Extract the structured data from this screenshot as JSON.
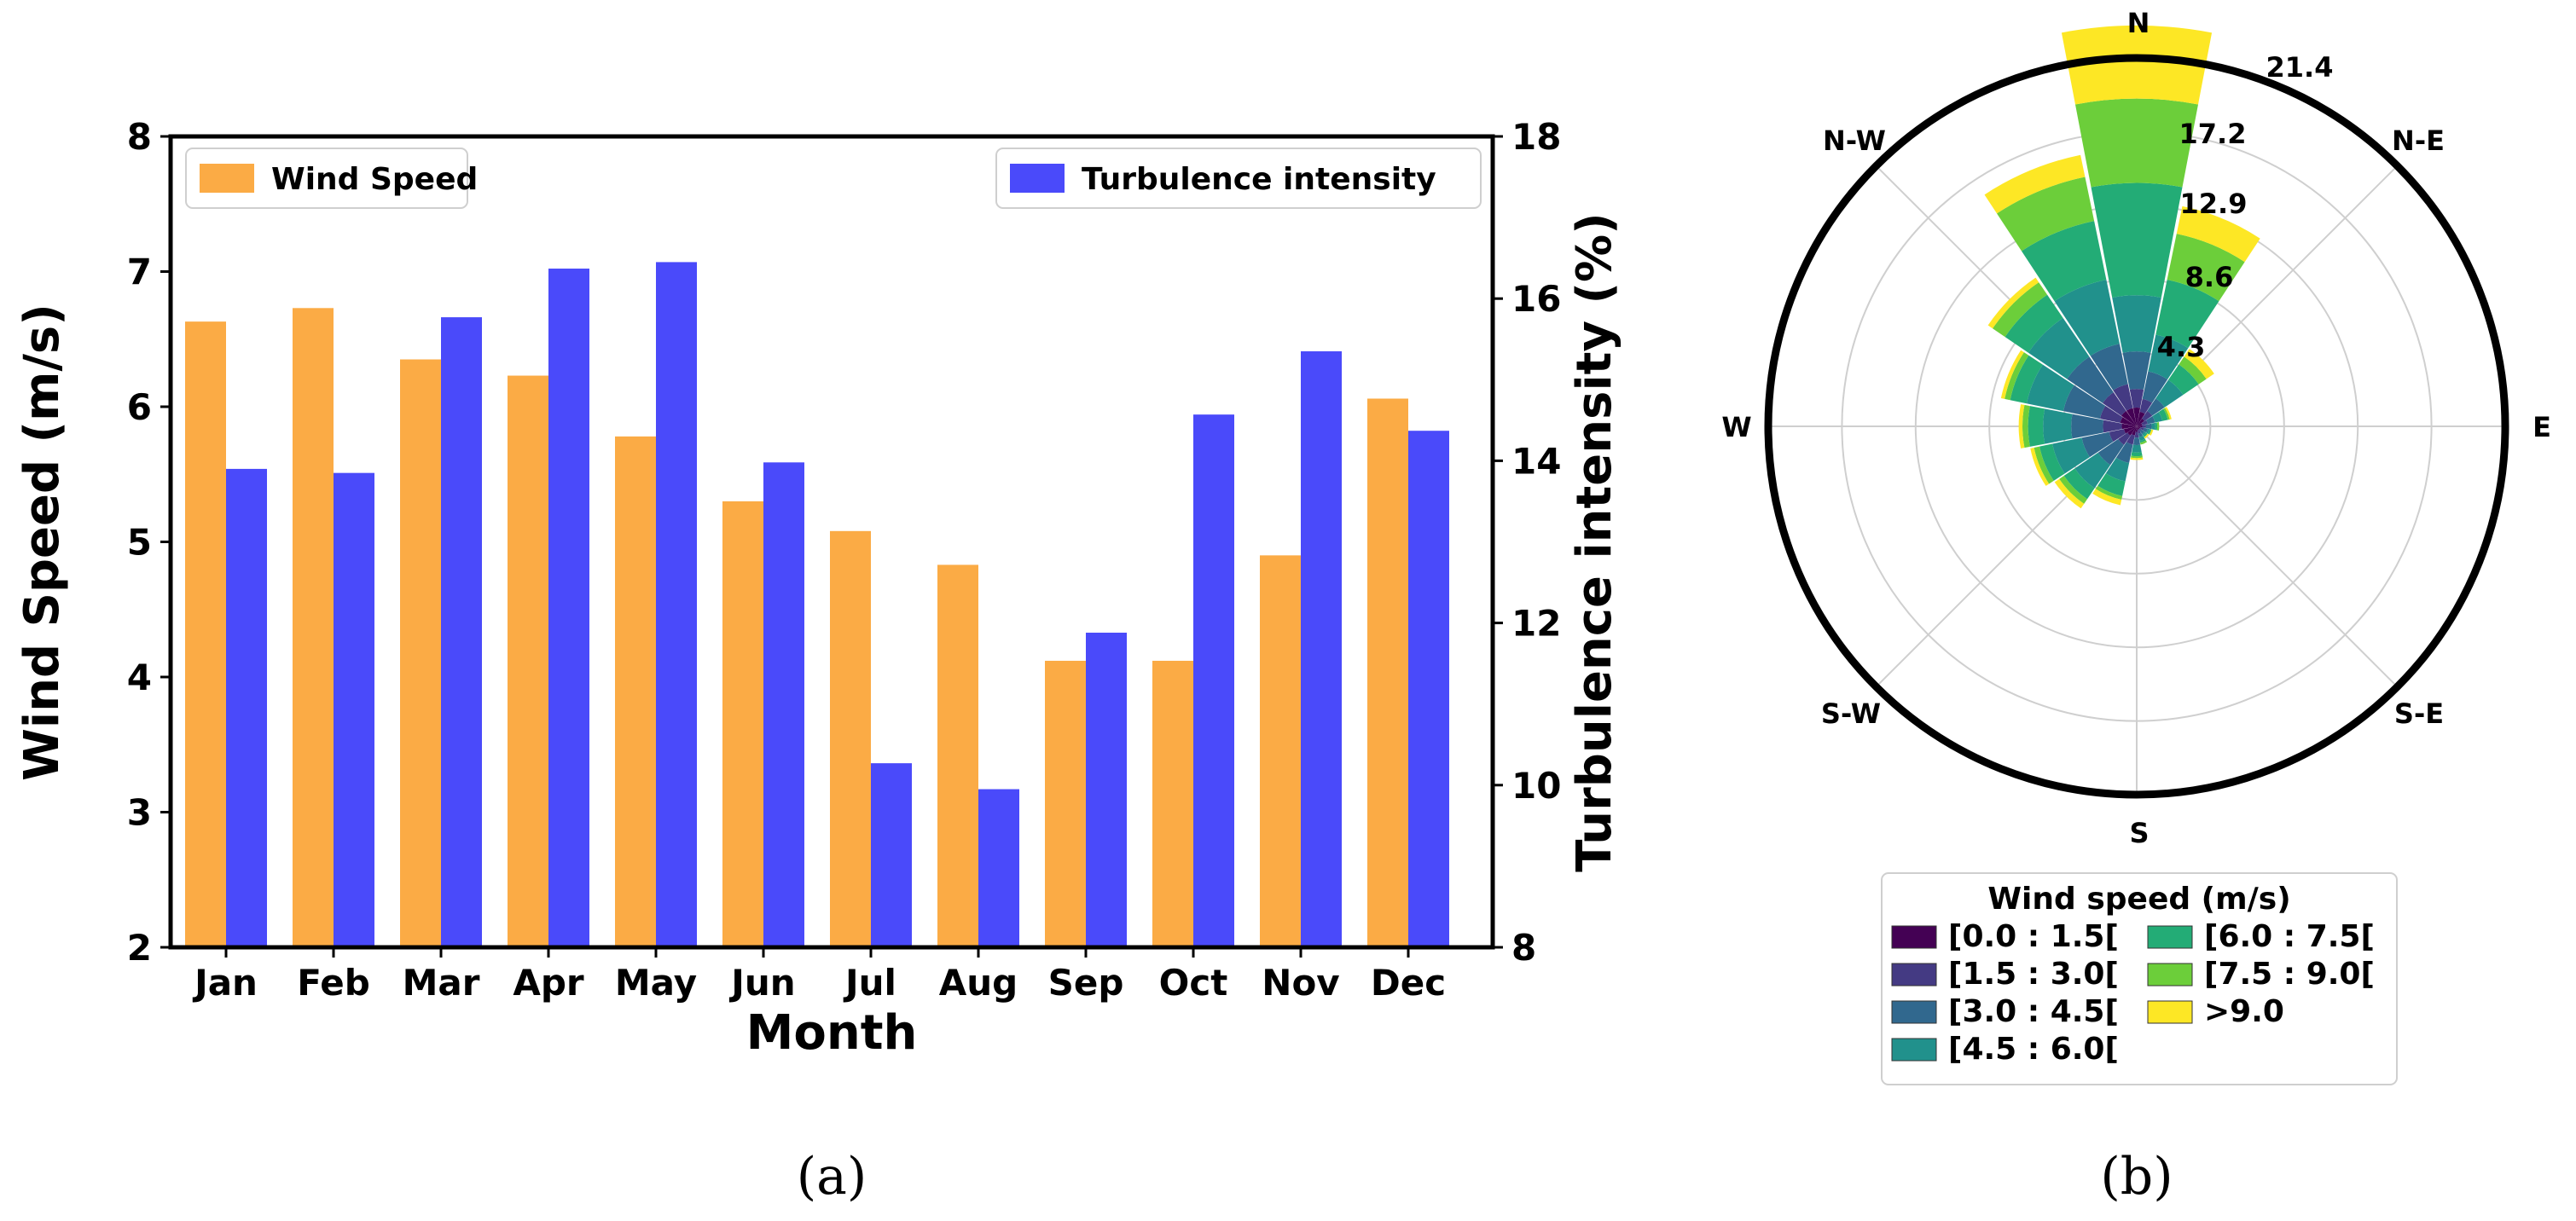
{
  "chart_data": [
    {
      "type": "bar",
      "panel_label": "(a)",
      "categories": [
        "Jan",
        "Feb",
        "Mar",
        "Apr",
        "May",
        "Jun",
        "Jul",
        "Aug",
        "Sep",
        "Oct",
        "Nov",
        "Dec"
      ],
      "xlabel": "Month",
      "ylabel": "Wind Speed (m/s)",
      "y2label": "Turbulence intensity (%)",
      "ylim": [
        2,
        8
      ],
      "y2lim": [
        8,
        18
      ],
      "yticks": [
        "2",
        "3",
        "4",
        "5",
        "6",
        "7",
        "8"
      ],
      "y2ticks": [
        "8",
        "10",
        "12",
        "14",
        "16",
        "18"
      ],
      "series": [
        {
          "name": "Wind Speed",
          "axis": "left",
          "color": "#FBAB45",
          "values": [
            6.63,
            6.73,
            6.35,
            6.23,
            5.78,
            5.3,
            5.08,
            4.83,
            4.12,
            4.12,
            4.9,
            6.06
          ]
        },
        {
          "name": "Turbulence intensity",
          "axis": "right",
          "color": "#4A4AFA",
          "values": [
            13.9,
            13.85,
            15.77,
            16.37,
            16.45,
            13.98,
            10.27,
            9.95,
            11.88,
            14.57,
            15.35,
            14.37
          ]
        }
      ],
      "legend": {
        "left": "Wind Speed",
        "right": "Turbulence intensity",
        "placement": "top-left / top-right"
      }
    },
    {
      "type": "windrose",
      "panel_label": "(b)",
      "directions": [
        "N",
        "N-E",
        "E",
        "S-E",
        "S",
        "S-W",
        "W",
        "N-W"
      ],
      "sector_order": "16 sectors clockwise from N",
      "radial_ticks": [
        "4.3",
        "8.6",
        "12.9",
        "17.2",
        "21.4"
      ],
      "radial_max": 21.4,
      "legend_title": "Wind speed (m/s)",
      "bins": [
        {
          "label": "[0.0 : 1.5[",
          "color": "#440154"
        },
        {
          "label": "[1.5 : 3.0[",
          "color": "#443A83"
        },
        {
          "label": "[3.0 : 4.5[",
          "color": "#31688E"
        },
        {
          "label": "[4.5 : 6.0[",
          "color": "#21918C"
        },
        {
          "label": "[6.0 : 7.5[",
          "color": "#23AC76"
        },
        {
          "label": "[7.5 : 9.0[",
          "color": "#6CCE3A"
        },
        {
          "label": ">9.0",
          "color": "#FDE725"
        }
      ],
      "sectors": [
        {
          "dir": "N",
          "cumulative": [
            1.0,
            2.0,
            4.0,
            7.0,
            13.0,
            17.5,
            21.4
          ]
        },
        {
          "dir": "NNE",
          "cumulative": [
            0.8,
            1.5,
            3.0,
            5.0,
            8.0,
            10.5,
            12.0
          ]
        },
        {
          "dir": "NE",
          "cumulative": [
            0.5,
            1.0,
            1.8,
            3.0,
            4.0,
            4.5,
            5.0
          ]
        },
        {
          "dir": "ENE",
          "cumulative": [
            0.3,
            0.6,
            1.0,
            1.4,
            1.7,
            1.8,
            1.9
          ]
        },
        {
          "dir": "E",
          "cumulative": [
            0.3,
            0.5,
            0.8,
            1.0,
            1.1,
            1.2,
            1.2
          ]
        },
        {
          "dir": "ESE",
          "cumulative": [
            0.2,
            0.4,
            0.6,
            0.7,
            0.8,
            0.8,
            0.9
          ]
        },
        {
          "dir": "SE",
          "cumulative": [
            0.2,
            0.3,
            0.5,
            0.6,
            0.7,
            0.7,
            0.8
          ]
        },
        {
          "dir": "SSE",
          "cumulative": [
            0.2,
            0.4,
            0.6,
            0.8,
            0.9,
            1.0,
            1.0
          ]
        },
        {
          "dir": "S",
          "cumulative": [
            0.3,
            0.6,
            1.0,
            1.4,
            1.6,
            1.7,
            1.8
          ]
        },
        {
          "dir": "SSW",
          "cumulative": [
            0.5,
            1.0,
            2.0,
            3.0,
            3.8,
            4.0,
            4.3
          ]
        },
        {
          "dir": "SW",
          "cumulative": [
            0.6,
            1.2,
            2.5,
            4.0,
            4.7,
            5.0,
            5.3
          ]
        },
        {
          "dir": "WSW",
          "cumulative": [
            0.7,
            1.5,
            3.0,
            4.6,
            5.3,
            5.6,
            5.8
          ]
        },
        {
          "dir": "W",
          "cumulative": [
            0.8,
            1.8,
            3.5,
            5.0,
            5.8,
            6.1,
            6.3
          ]
        },
        {
          "dir": "WNW",
          "cumulative": [
            0.9,
            2.0,
            4.0,
            6.0,
            6.9,
            7.2,
            7.4
          ]
        },
        {
          "dir": "NW",
          "cumulative": [
            1.0,
            2.2,
            4.5,
            7.0,
            8.5,
            9.3,
            9.6
          ]
        },
        {
          "dir": "NNW",
          "cumulative": [
            1.0,
            2.3,
            4.5,
            8.0,
            11.2,
            13.6,
            14.8
          ]
        }
      ]
    }
  ]
}
